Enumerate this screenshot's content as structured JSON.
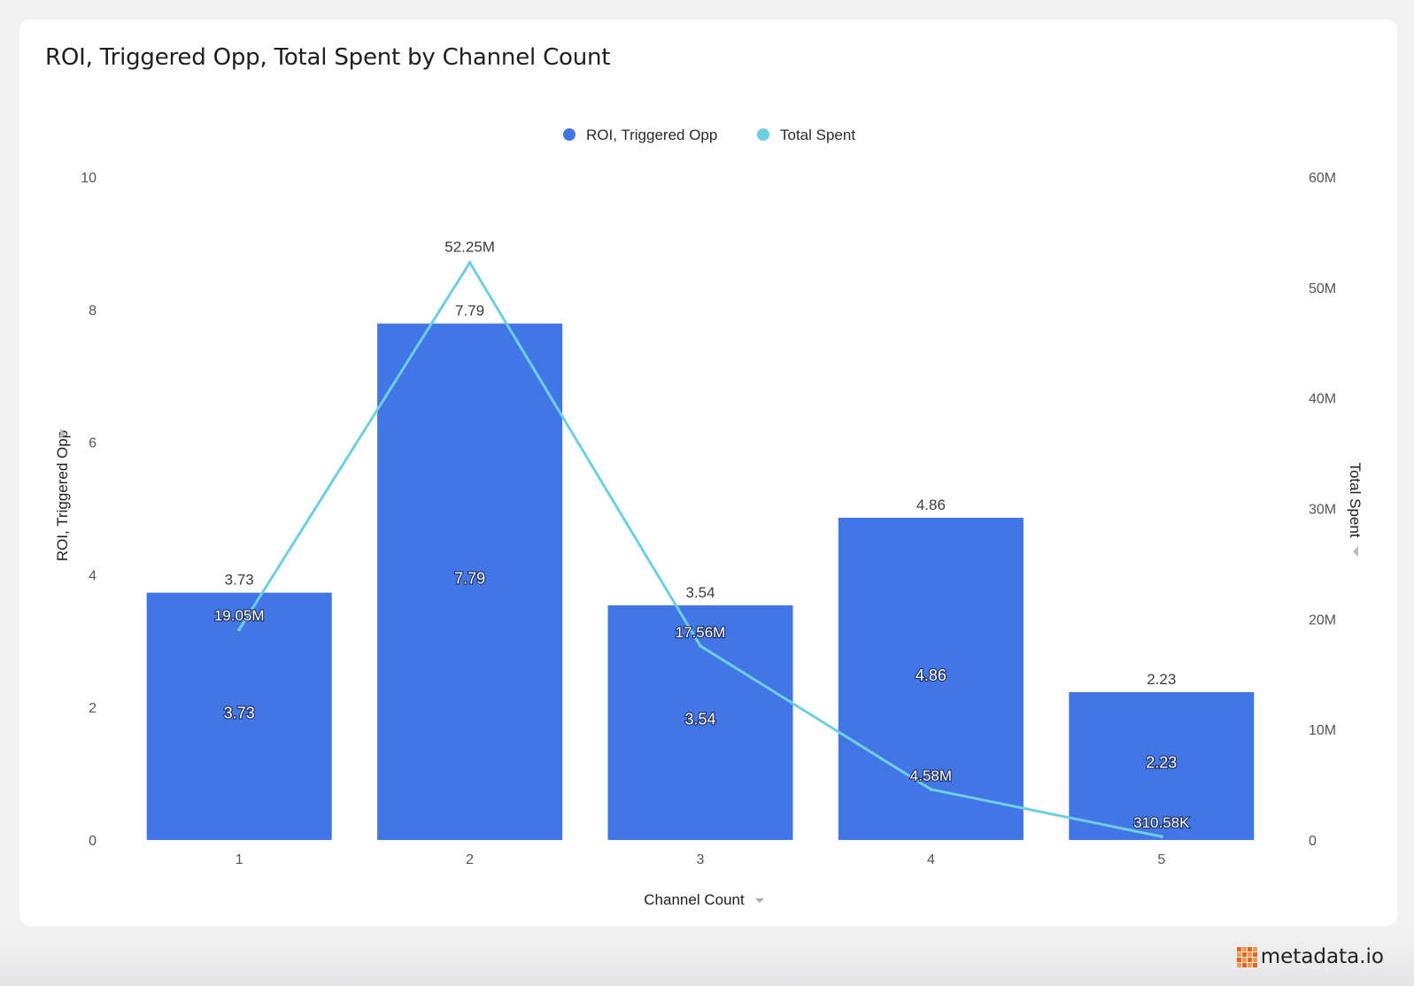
{
  "chart_title": "ROI, Triggered Opp, Total Spent by Channel Count",
  "brand": {
    "name": "metadata.io",
    "logo_color": "#e8631d"
  },
  "colors": {
    "bar": "#4275e6",
    "line": "#6dcfe0"
  },
  "chart_data": {
    "type": "bar",
    "title": "ROI, Triggered Opp, Total Spent by Channel Count",
    "xlabel": "Channel Count",
    "ylabel": "ROI, Triggered Opp",
    "y2label": "Total Spent",
    "categories": [
      "1",
      "2",
      "3",
      "4",
      "5"
    ],
    "ylim": [
      0,
      10
    ],
    "y_ticks": [
      "0",
      "2",
      "4",
      "6",
      "8",
      "10"
    ],
    "y2lim": [
      0,
      60000000
    ],
    "y2_ticks": [
      "0",
      "10M",
      "20M",
      "30M",
      "40M",
      "50M",
      "60M"
    ],
    "legend_position": "top-center",
    "grid": false,
    "series": [
      {
        "name": "ROI, Triggered Opp",
        "type": "bar",
        "axis": "left",
        "color": "#4275e6",
        "values": [
          3.73,
          7.79,
          3.54,
          4.86,
          2.23
        ],
        "labels": [
          "3.73",
          "7.79",
          "3.54",
          "4.86",
          "2.23"
        ]
      },
      {
        "name": "Total Spent",
        "type": "line",
        "axis": "right",
        "color": "#6dcfe0",
        "values": [
          19050000,
          52250000,
          17560000,
          4580000,
          310580
        ],
        "labels": [
          "19.05M",
          "52.25M",
          "17.56M",
          "4.58M",
          "310.58K"
        ]
      }
    ]
  }
}
